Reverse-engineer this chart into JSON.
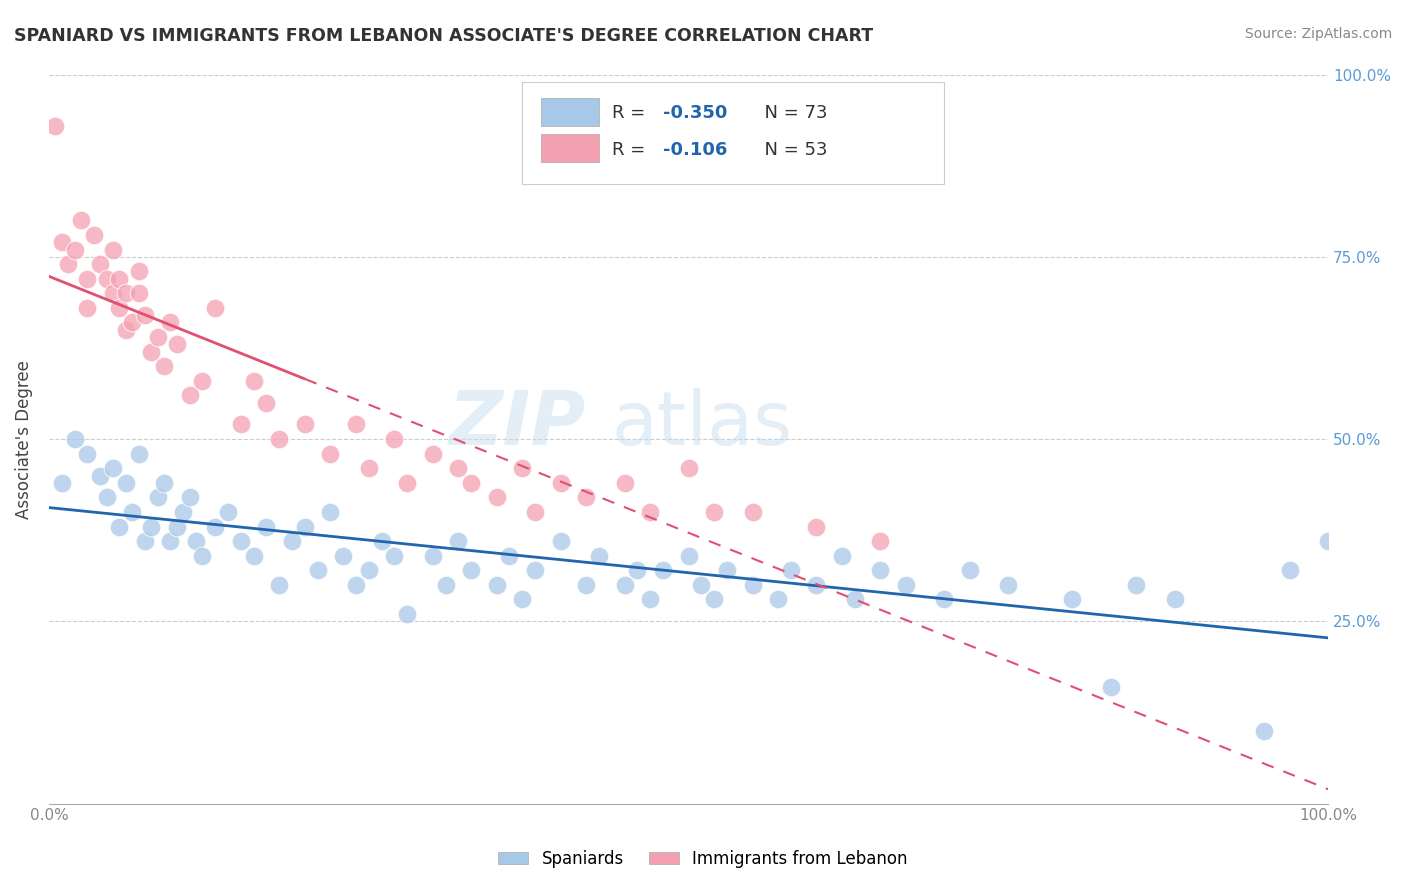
{
  "title": "SPANIARD VS IMMIGRANTS FROM LEBANON ASSOCIATE'S DEGREE CORRELATION CHART",
  "source": "Source: ZipAtlas.com",
  "ylabel": "Associate's Degree",
  "legend_blue": {
    "R": -0.35,
    "N": 73,
    "label": "Spaniards"
  },
  "legend_pink": {
    "R": -0.106,
    "N": 53,
    "label": "Immigrants from Lebanon"
  },
  "watermark_zip": "ZIP",
  "watermark_atlas": "atlas",
  "blue_color": "#a8c8e8",
  "pink_color": "#f4a0b0",
  "blue_line_color": "#2166ac",
  "pink_line_color": "#e05070",
  "r_value_color": "#2166ac",
  "background_color": "#ffffff",
  "grid_color": "#cccccc",
  "spaniards_x": [
    1.0,
    2.0,
    3.0,
    4.0,
    4.5,
    5.0,
    5.5,
    6.0,
    6.5,
    7.0,
    7.5,
    8.0,
    8.5,
    9.0,
    9.5,
    10.0,
    10.5,
    11.0,
    11.5,
    12.0,
    13.0,
    14.0,
    15.0,
    16.0,
    17.0,
    18.0,
    19.0,
    20.0,
    21.0,
    22.0,
    23.0,
    24.0,
    25.0,
    26.0,
    27.0,
    28.0,
    30.0,
    31.0,
    32.0,
    33.0,
    35.0,
    36.0,
    37.0,
    38.0,
    40.0,
    42.0,
    43.0,
    45.0,
    46.0,
    47.0,
    48.0,
    50.0,
    51.0,
    52.0,
    53.0,
    55.0,
    57.0,
    58.0,
    60.0,
    62.0,
    63.0,
    65.0,
    67.0,
    70.0,
    72.0,
    75.0,
    80.0,
    83.0,
    85.0,
    88.0,
    95.0,
    97.0,
    100.0
  ],
  "spaniards_y": [
    44.0,
    50.0,
    48.0,
    45.0,
    42.0,
    46.0,
    38.0,
    44.0,
    40.0,
    48.0,
    36.0,
    38.0,
    42.0,
    44.0,
    36.0,
    38.0,
    40.0,
    42.0,
    36.0,
    34.0,
    38.0,
    40.0,
    36.0,
    34.0,
    38.0,
    30.0,
    36.0,
    38.0,
    32.0,
    40.0,
    34.0,
    30.0,
    32.0,
    36.0,
    34.0,
    26.0,
    34.0,
    30.0,
    36.0,
    32.0,
    30.0,
    34.0,
    28.0,
    32.0,
    36.0,
    30.0,
    34.0,
    30.0,
    32.0,
    28.0,
    32.0,
    34.0,
    30.0,
    28.0,
    32.0,
    30.0,
    28.0,
    32.0,
    30.0,
    34.0,
    28.0,
    32.0,
    30.0,
    28.0,
    32.0,
    30.0,
    28.0,
    16.0,
    30.0,
    28.0,
    10.0,
    32.0,
    36.0
  ],
  "lebanon_x": [
    0.5,
    1.0,
    1.5,
    2.0,
    2.5,
    3.0,
    3.0,
    3.5,
    4.0,
    4.5,
    5.0,
    5.0,
    5.5,
    5.5,
    6.0,
    6.0,
    6.5,
    7.0,
    7.0,
    7.5,
    8.0,
    8.5,
    9.0,
    9.5,
    10.0,
    11.0,
    12.0,
    13.0,
    15.0,
    16.0,
    17.0,
    18.0,
    20.0,
    22.0,
    24.0,
    25.0,
    27.0,
    28.0,
    30.0,
    32.0,
    33.0,
    35.0,
    37.0,
    38.0,
    40.0,
    42.0,
    45.0,
    47.0,
    50.0,
    52.0,
    55.0,
    60.0,
    65.0
  ],
  "lebanon_y": [
    93.0,
    77.0,
    74.0,
    76.0,
    80.0,
    72.0,
    68.0,
    78.0,
    74.0,
    72.0,
    70.0,
    76.0,
    68.0,
    72.0,
    65.0,
    70.0,
    66.0,
    70.0,
    73.0,
    67.0,
    62.0,
    64.0,
    60.0,
    66.0,
    63.0,
    56.0,
    58.0,
    68.0,
    52.0,
    58.0,
    55.0,
    50.0,
    52.0,
    48.0,
    52.0,
    46.0,
    50.0,
    44.0,
    48.0,
    46.0,
    44.0,
    42.0,
    46.0,
    40.0,
    44.0,
    42.0,
    44.0,
    40.0,
    46.0,
    40.0,
    40.0,
    38.0,
    36.0
  ]
}
